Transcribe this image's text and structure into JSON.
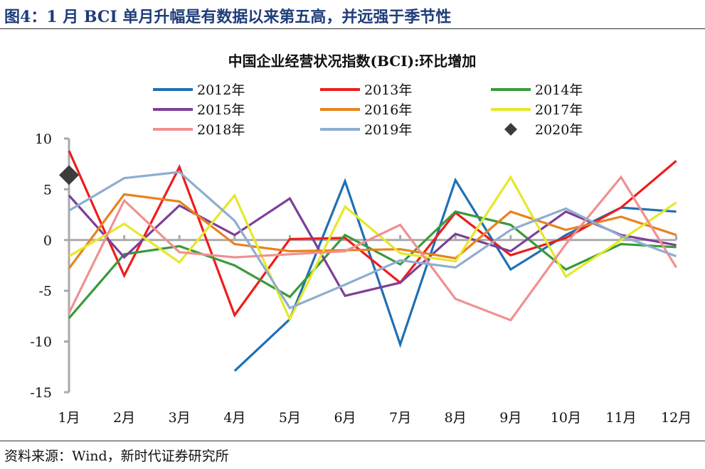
{
  "figure": {
    "title": "图4：1 月 BCI 单月升幅是有数据以来第五高，并远强于季节性",
    "source": "资料来源：Wind，新时代证券研究所"
  },
  "chart_data": {
    "type": "line",
    "title": "中国企业经营状况指数(BCI):环比增加",
    "categories": [
      "1月",
      "2月",
      "3月",
      "4月",
      "5月",
      "6月",
      "7月",
      "8月",
      "9月",
      "10月",
      "11月",
      "12月"
    ],
    "ylim": [
      -15,
      10
    ],
    "yticks": [
      10,
      5,
      0,
      -5,
      -10,
      -15
    ],
    "grid": false,
    "legend": "top",
    "series": [
      {
        "name": "2012年",
        "color": "#1f6fb5",
        "marker": "line",
        "values": [
          null,
          null,
          null,
          -12.9,
          -7.8,
          5.8,
          -10.3,
          5.9,
          -2.9,
          0.5,
          3.2,
          2.8
        ]
      },
      {
        "name": "2013年",
        "color": "#ee1c1c",
        "marker": "line",
        "values": [
          8.8,
          -3.5,
          7.2,
          -7.4,
          0.1,
          0.2,
          -4.2,
          2.7,
          -1.5,
          0.2,
          3.2,
          7.8
        ]
      },
      {
        "name": "2014年",
        "color": "#3a9a3a",
        "marker": "line",
        "values": [
          -7.7,
          -1.4,
          -0.6,
          -2.5,
          -5.6,
          0.5,
          -2.4,
          2.8,
          1.5,
          -2.9,
          -0.4,
          -0.7
        ]
      },
      {
        "name": "2015年",
        "color": "#7d3f98",
        "marker": "line",
        "values": [
          4.4,
          -1.7,
          3.4,
          0.5,
          4.1,
          -5.5,
          -4.2,
          0.6,
          -1.1,
          2.8,
          0.5,
          -0.5
        ]
      },
      {
        "name": "2016年",
        "color": "#e8821e",
        "marker": "line",
        "values": [
          -2.8,
          4.5,
          3.8,
          -0.4,
          -1.1,
          -1.0,
          -0.9,
          -1.8,
          2.8,
          1.0,
          2.3,
          0.5
        ]
      },
      {
        "name": "2017年",
        "color": "#e5e82a",
        "marker": "line",
        "values": [
          -1.6,
          1.6,
          -2.2,
          4.4,
          -7.8,
          3.3,
          -1.3,
          -2.1,
          6.2,
          -3.6,
          0.0,
          3.7
        ]
      },
      {
        "name": "2018年",
        "color": "#f09090",
        "marker": "line",
        "values": [
          -7.2,
          3.9,
          -1.2,
          -1.7,
          -1.4,
          -1.1,
          1.5,
          -5.8,
          -7.9,
          -0.4,
          6.2,
          -2.7
        ]
      },
      {
        "name": "2019年",
        "color": "#8eaed0",
        "marker": "line",
        "values": [
          2.9,
          6.1,
          6.7,
          1.9,
          -6.7,
          -4.4,
          -2.0,
          -2.7,
          1.0,
          3.1,
          0.4,
          -1.6
        ]
      },
      {
        "name": "2020年",
        "color": "#3c3c3c",
        "marker": "diamond",
        "values": [
          6.4,
          null,
          null,
          null,
          null,
          null,
          null,
          null,
          null,
          null,
          null,
          null
        ]
      }
    ]
  }
}
